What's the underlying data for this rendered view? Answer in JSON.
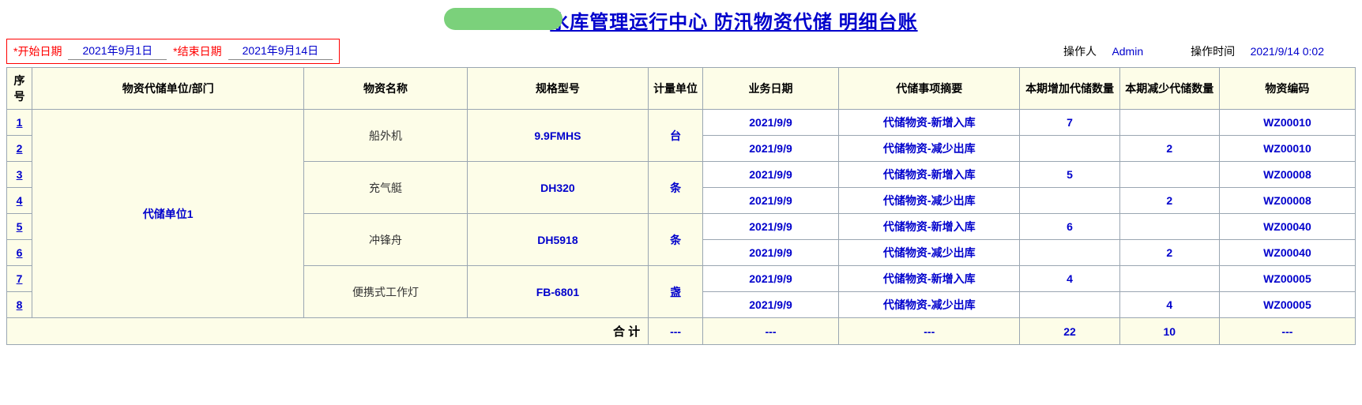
{
  "title": "水库管理运行中心  防汛物资代储 明细台账",
  "meta": {
    "start_label": "*开始日期",
    "start_value": "2021年9月1日",
    "end_label": "*结束日期",
    "end_value": "2021年9月14日",
    "operator_label": "操作人",
    "operator_value": "Admin",
    "optime_label": "操作时间",
    "optime_value": "2021/9/14 0:02"
  },
  "columns": {
    "seq": "序号",
    "unit": "物资代储单位/部门",
    "name": "物资名称",
    "spec": "规格型号",
    "meas": "计量单位",
    "date": "业务日期",
    "summary": "代储事项摘要",
    "inc": "本期增加代储数量",
    "dec": "本期减少代储数量",
    "code": "物资编码"
  },
  "unit_name": "代储单位1",
  "groups": [
    {
      "name": "船外机",
      "spec": "9.9FMHS",
      "meas": "台",
      "rows": [
        {
          "seq": "1",
          "date": "2021/9/9",
          "summary": "代储物资-新增入库",
          "inc": "7",
          "dec": "",
          "code": "WZ00010"
        },
        {
          "seq": "2",
          "date": "2021/9/9",
          "summary": "代储物资-减少出库",
          "inc": "",
          "dec": "2",
          "code": "WZ00010"
        }
      ]
    },
    {
      "name": "充气艇",
      "spec": "DH320",
      "meas": "条",
      "rows": [
        {
          "seq": "3",
          "date": "2021/9/9",
          "summary": "代储物资-新增入库",
          "inc": "5",
          "dec": "",
          "code": "WZ00008"
        },
        {
          "seq": "4",
          "date": "2021/9/9",
          "summary": "代储物资-减少出库",
          "inc": "",
          "dec": "2",
          "code": "WZ00008"
        }
      ]
    },
    {
      "name": "冲锋舟",
      "spec": "DH5918",
      "meas": "条",
      "rows": [
        {
          "seq": "5",
          "date": "2021/9/9",
          "summary": "代储物资-新增入库",
          "inc": "6",
          "dec": "",
          "code": "WZ00040"
        },
        {
          "seq": "6",
          "date": "2021/9/9",
          "summary": "代储物资-减少出库",
          "inc": "",
          "dec": "2",
          "code": "WZ00040"
        }
      ]
    },
    {
      "name": "便携式工作灯",
      "spec": "FB-6801",
      "meas": "盏",
      "rows": [
        {
          "seq": "7",
          "date": "2021/9/9",
          "summary": "代储物资-新增入库",
          "inc": "4",
          "dec": "",
          "code": "WZ00005"
        },
        {
          "seq": "8",
          "date": "2021/9/9",
          "summary": "代储物资-减少出库",
          "inc": "",
          "dec": "4",
          "code": "WZ00005"
        }
      ]
    }
  ],
  "total": {
    "label": "合 计",
    "dash": "---",
    "inc": "22",
    "dec": "10"
  },
  "style": {
    "header_bg": "#fdfde8",
    "highlight_bg": "#fff37a",
    "border_color": "#9aa6b2",
    "link_color": "#0000cc",
    "red": "#ff0000",
    "pill_color": "#7bd17b"
  }
}
